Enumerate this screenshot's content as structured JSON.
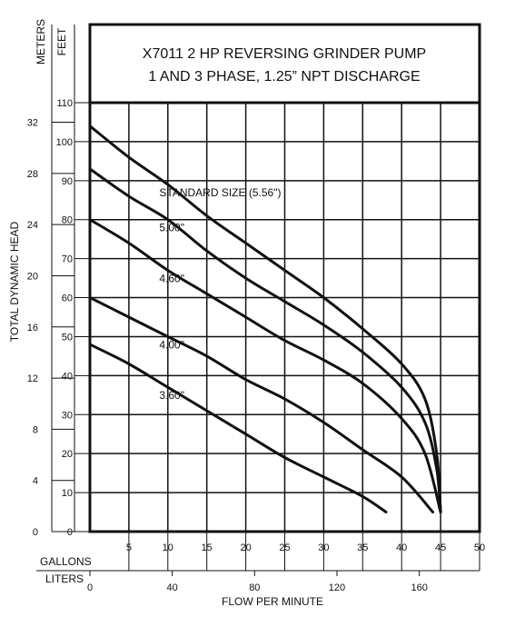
{
  "chart_data": {
    "type": "line",
    "title_lines": [
      "X7011 2 HP REVERSING GRINDER PUMP",
      "1 AND 3 PHASE, 1.25” NPT DISCHARGE"
    ],
    "x_axis": {
      "label": "FLOW PER MINUTE",
      "gallons_label": "GALLONS",
      "liters_label": "LITERS",
      "gallons_ticks": [
        5,
        10,
        15,
        20,
        25,
        30,
        35,
        40,
        45,
        50
      ],
      "liters_ticks": [
        0,
        40,
        80,
        120,
        160
      ],
      "range_gallons": [
        0,
        50
      ]
    },
    "y_axis": {
      "label": "TOTAL DYNAMIC HEAD",
      "feet_label": "FEET",
      "meters_label": "METERS",
      "feet_ticks": [
        0,
        10,
        20,
        30,
        40,
        50,
        60,
        70,
        80,
        90,
        100,
        110
      ],
      "meters_ticks": [
        0,
        4,
        8,
        12,
        16,
        20,
        24,
        28,
        32
      ],
      "range_feet": [
        0,
        110
      ]
    },
    "grid": true,
    "series": [
      {
        "name": "STANDARD SIZE (5.56\")",
        "x": [
          0,
          5,
          10,
          15,
          20,
          25,
          30,
          35,
          40,
          43,
          44.5,
          45
        ],
        "y": [
          104,
          96,
          89,
          81,
          74,
          67,
          60,
          52,
          43,
          34,
          20,
          5
        ]
      },
      {
        "name": "5.00\"",
        "x": [
          0,
          5,
          10,
          15,
          20,
          25,
          30,
          35,
          40,
          43,
          44.5,
          45
        ],
        "y": [
          93,
          86,
          80,
          72,
          65,
          59,
          53,
          46,
          37,
          28,
          16,
          5
        ]
      },
      {
        "name": "4.60\"",
        "x": [
          0,
          5,
          10,
          15,
          20,
          25,
          30,
          35,
          40,
          43,
          45
        ],
        "y": [
          80,
          74,
          67,
          61,
          55,
          49,
          44,
          38,
          29,
          20,
          5
        ]
      },
      {
        "name": "4.00\"",
        "x": [
          0,
          5,
          10,
          15,
          20,
          25,
          30,
          35,
          40,
          44
        ],
        "y": [
          60,
          55,
          50,
          45,
          39,
          34,
          28,
          21,
          14,
          5
        ]
      },
      {
        "name": "3.60\"",
        "x": [
          0,
          5,
          10,
          15,
          20,
          25,
          30,
          35,
          38
        ],
        "y": [
          48,
          43,
          37,
          31,
          25,
          19,
          14,
          9,
          5
        ]
      }
    ]
  }
}
